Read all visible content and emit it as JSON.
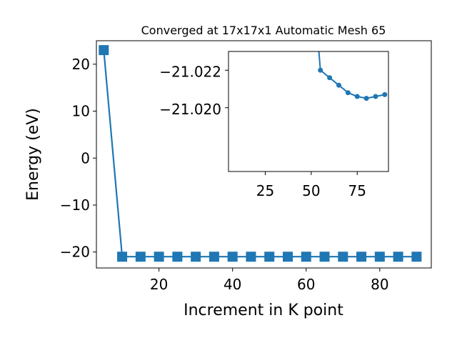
{
  "chart_data": [
    {
      "type": "line",
      "title": "Converged at 17x17x1 Automatic Mesh 65",
      "xlabel": "Increment in K point",
      "ylabel": "Energy (eV)",
      "xlim": [
        3,
        94
      ],
      "ylim": [
        -23.4,
        25
      ],
      "xticks": [
        "20",
        "40",
        "60",
        "80"
      ],
      "yticks": [
        "20",
        "10",
        "0",
        "−10",
        "−20"
      ],
      "marker": "square",
      "color": "#1f77b4",
      "series": [
        {
          "x": [
            5,
            10,
            15,
            20,
            25,
            30,
            35,
            40,
            45,
            50,
            55,
            60,
            65,
            70,
            75,
            80,
            85,
            90
          ],
          "values": [
            23.0,
            -21.0,
            -21.0,
            -21.0,
            -21.0,
            -21.0,
            -21.0,
            -21.0,
            -21.0,
            -21.0,
            -21.0,
            -21.0,
            -21.0,
            -21.0,
            -21.0,
            -21.0,
            -21.0,
            -21.0
          ]
        }
      ]
    },
    {
      "type": "line",
      "title": "",
      "xlabel": "",
      "ylabel": "",
      "xlim": [
        5,
        92
      ],
      "ylim": [
        -21.0166,
        -21.023
      ],
      "xticks": [
        "25",
        "50",
        "75"
      ],
      "yticks": [
        "−21.022",
        "−21.020"
      ],
      "marker": "circle",
      "color": "#1f77b4",
      "series": [
        {
          "x": [
            50,
            55,
            60,
            65,
            70,
            75,
            80,
            85,
            90
          ],
          "values": [
            -21.028,
            -21.022,
            -21.0216,
            -21.0212,
            -21.0208,
            -21.0206,
            -21.0205,
            -21.0206,
            -21.0207
          ]
        }
      ]
    }
  ]
}
